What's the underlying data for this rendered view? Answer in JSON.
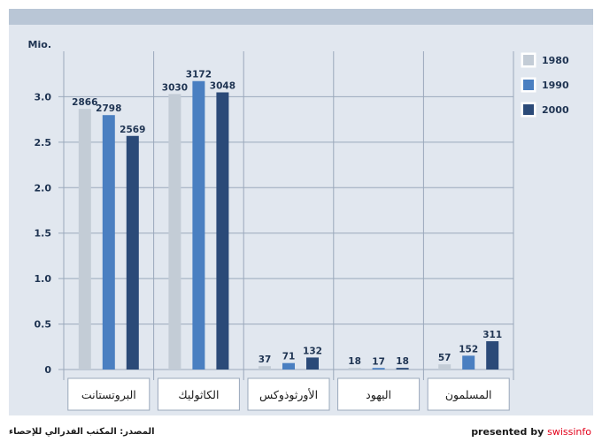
{
  "chart_data": {
    "type": "bar",
    "ylabel": "Mio.",
    "ylim": [
      0,
      3.5
    ],
    "yticks": [
      "0",
      "0.5",
      "1.0",
      "1.5",
      "2.0",
      "2.5",
      "3.0"
    ],
    "categories": [
      "البروتستانت",
      "الكاثوليك",
      "الأورثوذوكس",
      "اليهود",
      "المسلمون"
    ],
    "series": [
      {
        "name": "1980",
        "color": "#c3ccd6",
        "values": [
          2866,
          3030,
          37,
          18,
          57
        ]
      },
      {
        "name": "1990",
        "color": "#4a7fc1",
        "values": [
          2798,
          3172,
          71,
          17,
          152
        ]
      },
      {
        "name": "2000",
        "color": "#2b4a78",
        "values": [
          2569,
          3048,
          132,
          18,
          311
        ]
      }
    ],
    "legend_position": "top-right",
    "grid": true
  },
  "footer": {
    "source": "المصدر: المكتب الفدرالي للإحصاء",
    "presented_by": "presented by",
    "brand": "swissinfo"
  }
}
